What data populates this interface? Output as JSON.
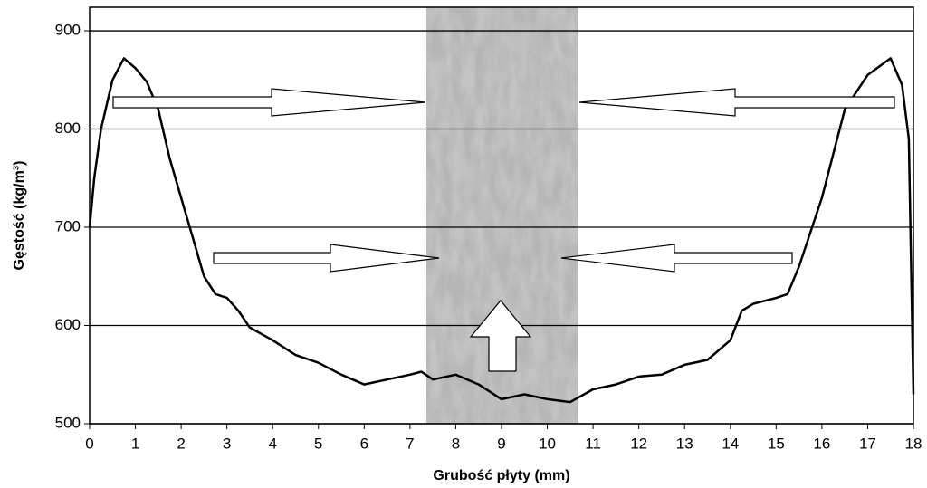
{
  "chart_data": {
    "type": "line",
    "x_label": "Grubość płyty (mm)",
    "y_label": "Gęstość (kg/m³)",
    "x": [
      0,
      0.1,
      0.25,
      0.5,
      0.75,
      1.0,
      1.25,
      1.5,
      1.75,
      2.0,
      2.25,
      2.5,
      2.75,
      3.0,
      3.25,
      3.5,
      4.0,
      4.5,
      5.0,
      5.5,
      5.75,
      6.0,
      6.5,
      7.0,
      7.25,
      7.5,
      8.0,
      8.5,
      9.0,
      9.5,
      10.0,
      10.5,
      11.0,
      11.5,
      12.0,
      12.5,
      13.0,
      13.5,
      14.0,
      14.25,
      14.5,
      15.0,
      15.25,
      15.5,
      16.0,
      16.5,
      17.0,
      17.5,
      17.75,
      17.9,
      18.0
    ],
    "values": [
      700,
      750,
      800,
      850,
      872,
      862,
      848,
      820,
      770,
      730,
      690,
      650,
      632,
      628,
      615,
      598,
      585,
      570,
      562,
      550,
      545,
      540,
      545,
      550,
      553,
      545,
      550,
      540,
      525,
      530,
      525,
      522,
      535,
      540,
      548,
      550,
      560,
      565,
      585,
      615,
      622,
      628,
      632,
      660,
      730,
      820,
      855,
      872,
      845,
      790,
      530
    ],
    "color": "#000000",
    "xlim": [
      0,
      18
    ],
    "xticks": [
      0,
      1,
      2,
      3,
      4,
      5,
      6,
      7,
      8,
      9,
      10,
      11,
      12,
      13,
      14,
      15,
      16,
      17,
      18
    ],
    "ylim": [
      500,
      924
    ],
    "yticks": [
      500,
      600,
      700,
      800,
      900
    ],
    "grid": true
  }
}
